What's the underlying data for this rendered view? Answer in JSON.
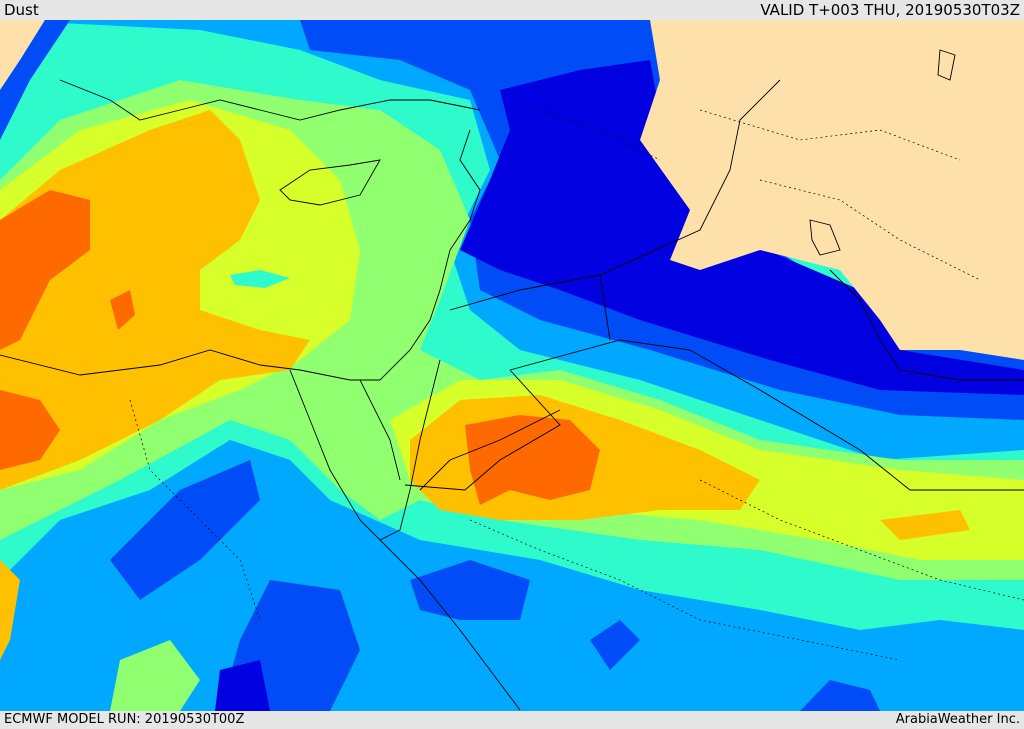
{
  "header": {
    "title": "Dust",
    "valid_time": "VALID T+003 THU, 20190530T03Z"
  },
  "footer": {
    "model_run": "ECMWF MODEL RUN: 20190530T00Z",
    "credit": "ArabiaWeather Inc."
  },
  "map": {
    "colors": {
      "land": "#fde0aa",
      "level1": "#0000e0",
      "level2": "#004cf7",
      "level3": "#00a8ff",
      "level4": "#2efacb",
      "level5": "#90ff70",
      "level6": "#d7ff29",
      "level7": "#ffc000",
      "level8": "#ff6a00",
      "border": "#000000"
    }
  }
}
